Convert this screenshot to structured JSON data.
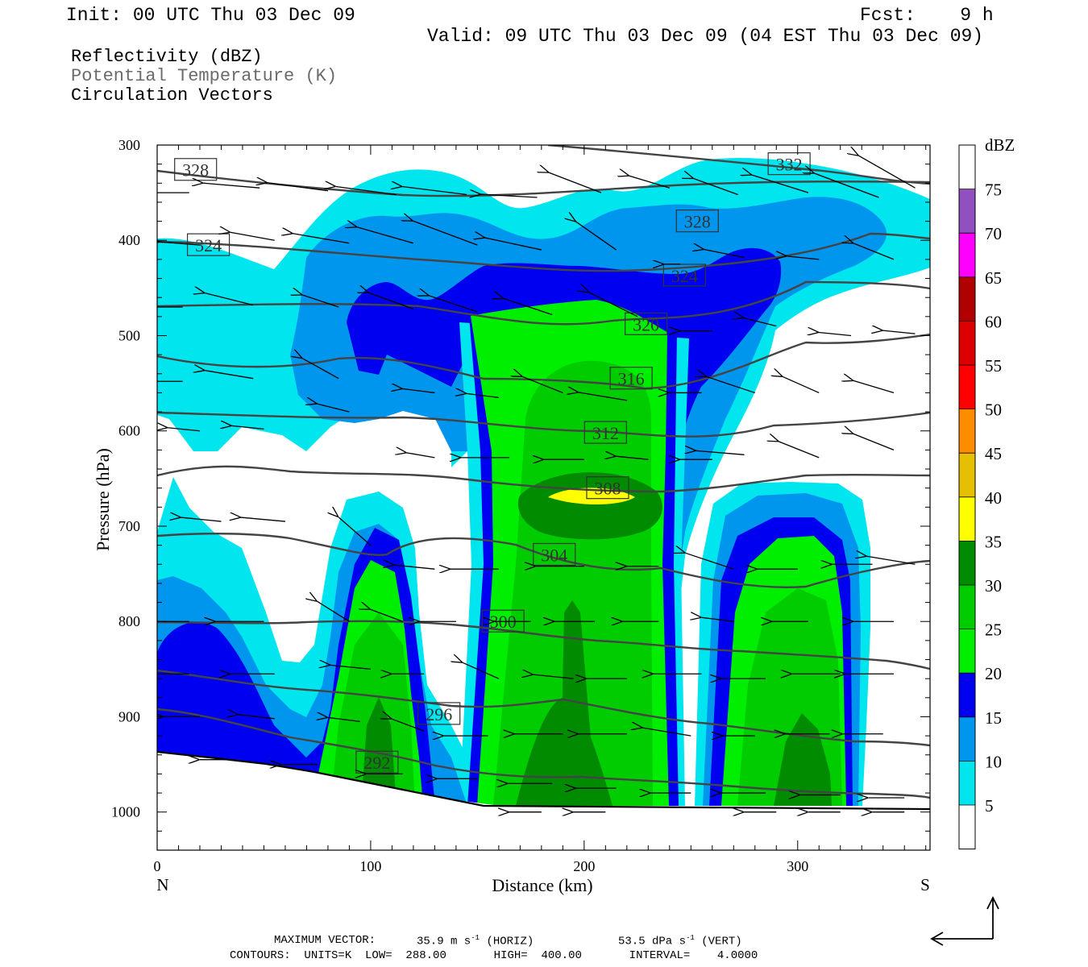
{
  "header": {
    "init": "Init: 00 UTC Thu 03 Dec 09",
    "fcst": "Fcst:    9 h",
    "valid": "Valid: 09 UTC Thu 03 Dec 09 (04 EST Thu 03 Dec 09)"
  },
  "legend": {
    "line1": "Reflectivity (dBZ)",
    "line2": "Potential Temperature (K)",
    "line3": "Circulation Vectors"
  },
  "footer": {
    "max_vector_label": "MAXIMUM VECTOR:",
    "max_vector_horiz": "35.9 m s",
    "horiz_tag": "(HORIZ)",
    "max_vector_vert": "53.5 dPa s",
    "vert_tag": "(VERT)",
    "exponent": "-1",
    "contours": "CONTOURS:  UNITS=K  LOW=  288.00       HIGH=  400.00       INTERVAL=    4.0000"
  },
  "chart_data": {
    "type": "cross-section",
    "xlabel": "Distance (km)",
    "ylabel": "Pressure (hPa)",
    "x_ticks": [
      0,
      100,
      200,
      300
    ],
    "y_ticks": [
      300,
      400,
      500,
      600,
      700,
      800,
      900,
      1000
    ],
    "xlim": [
      0,
      362
    ],
    "ylim": [
      1040,
      300
    ],
    "left_end_label": "N",
    "right_end_label": "S",
    "colorbar": {
      "title": "dBZ",
      "levels": [
        5,
        10,
        15,
        20,
        25,
        30,
        35,
        40,
        45,
        50,
        55,
        60,
        65,
        70,
        75
      ],
      "colors": [
        "#ffffff",
        "#00e5ee",
        "#0096ee",
        "#0000f0",
        "#00ee00",
        "#00cc00",
        "#008b00",
        "#ffff00",
        "#e6c000",
        "#ff8c00",
        "#ff0000",
        "#dd0000",
        "#b00000",
        "#ff00ff",
        "#9050c0",
        "#ffffff"
      ]
    },
    "theta_contours": [
      {
        "label": "328",
        "x": 18,
        "p": 326
      },
      {
        "label": "332",
        "x": 296,
        "p": 320
      },
      {
        "label": "328",
        "x": 253,
        "p": 380
      },
      {
        "label": "324",
        "x": 24,
        "p": 405
      },
      {
        "label": "324",
        "x": 247,
        "p": 437
      },
      {
        "label": "320",
        "x": 229,
        "p": 488
      },
      {
        "label": "316",
        "x": 222,
        "p": 545
      },
      {
        "label": "312",
        "x": 210,
        "p": 602
      },
      {
        "label": "308",
        "x": 211,
        "p": 660
      },
      {
        "label": "304",
        "x": 186,
        "p": 730
      },
      {
        "label": "300",
        "x": 162,
        "p": 800
      },
      {
        "label": "296",
        "x": 132,
        "p": 897
      },
      {
        "label": "292",
        "x": 103,
        "p": 948
      }
    ],
    "terrain_pressure_left": 938,
    "terrain_pressure_right": 1000
  }
}
